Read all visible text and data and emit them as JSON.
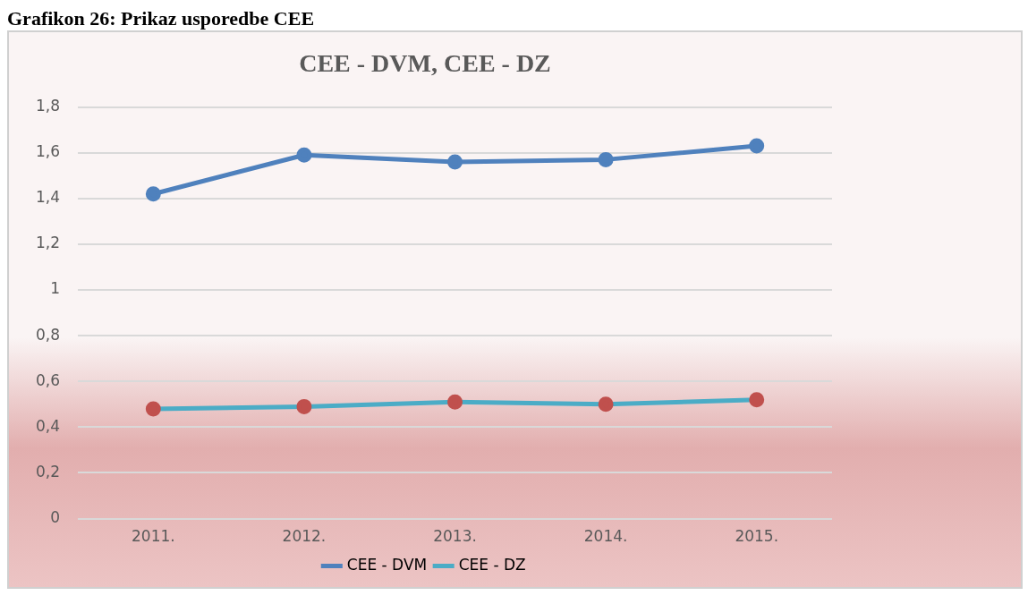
{
  "chart_data": {
    "type": "line",
    "title": "CEE - DVM, CEE - DZ",
    "annotations": [
      "Grafikon 26: Prikaz usporedbe CEE"
    ],
    "categories": [
      "2011.",
      "2012.",
      "2013.",
      "2014.",
      "2015."
    ],
    "series": [
      {
        "name": "CEE - DVM",
        "color": "#4f81bd",
        "values": [
          1.42,
          1.59,
          1.56,
          1.57,
          1.63
        ]
      },
      {
        "name": "CEE - DZ",
        "color": "#4bacc6",
        "colors": [
          "#c0504d",
          "#c0504d",
          "#c0504d",
          "#c0504d",
          "#c0504d"
        ],
        "values": [
          0.48,
          0.49,
          0.51,
          0.5,
          0.52
        ]
      }
    ],
    "ylim": [
      0,
      1.8
    ],
    "yticks": [
      {
        "value": 0,
        "label": "0"
      },
      {
        "value": 0.2,
        "label": "0,2"
      },
      {
        "value": 0.4,
        "label": "0,4"
      },
      {
        "value": 0.6,
        "label": "0,6"
      },
      {
        "value": 0.8,
        "label": "0,8"
      },
      {
        "value": 1,
        "label": "1"
      },
      {
        "value": 1.2,
        "label": "1,2"
      },
      {
        "value": 1.4,
        "label": "1,4"
      },
      {
        "value": 1.6,
        "label": "1,6"
      },
      {
        "value": 1.8,
        "label": "1,8"
      }
    ],
    "grid": "y",
    "legend": "bottom",
    "marker": "circle",
    "line_style": "solid"
  }
}
